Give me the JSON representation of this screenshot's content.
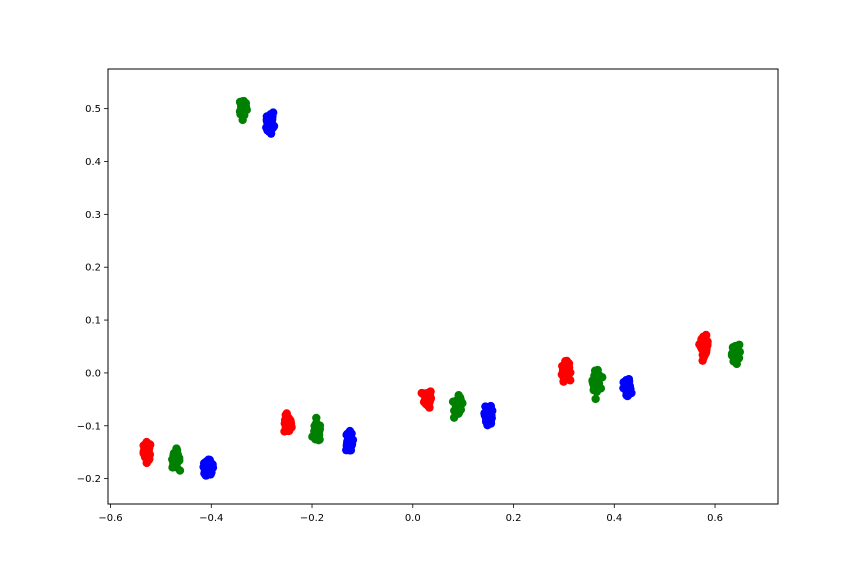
{
  "chart_data": {
    "type": "scatter",
    "title": "",
    "xlabel": "",
    "ylabel": "",
    "xlim": [
      -0.605,
      0.725
    ],
    "ylim": [
      -0.248,
      0.575
    ],
    "grid": false,
    "legend": "none",
    "x_ticks": [
      -0.6,
      -0.4,
      -0.2,
      0.0,
      0.2,
      0.4,
      0.6
    ],
    "x_tick_labels": [
      "−0.6",
      "−0.4",
      "−0.2",
      "0.0",
      "0.2",
      "0.4",
      "0.6"
    ],
    "y_ticks": [
      -0.2,
      -0.1,
      0.0,
      0.1,
      0.2,
      0.3,
      0.4,
      0.5
    ],
    "y_tick_labels": [
      "−0.2",
      "−0.1",
      "0.0",
      "0.1",
      "0.2",
      "0.3",
      "0.4",
      "0.5"
    ],
    "series": [
      {
        "name": "red",
        "color": "#ff0000",
        "clusters": [
          {
            "x": -0.527,
            "y": -0.148
          },
          {
            "x": -0.248,
            "y": -0.098
          },
          {
            "x": 0.03,
            "y": -0.048
          },
          {
            "x": 0.303,
            "y": 0.003
          },
          {
            "x": 0.579,
            "y": 0.052
          }
        ]
      },
      {
        "name": "green",
        "color": "#008000",
        "clusters": [
          {
            "x": -0.47,
            "y": -0.163
          },
          {
            "x": -0.19,
            "y": -0.113
          },
          {
            "x": 0.09,
            "y": -0.063
          },
          {
            "x": 0.365,
            "y": -0.015
          },
          {
            "x": 0.641,
            "y": 0.036
          },
          {
            "x": -0.337,
            "y": 0.503
          }
        ]
      },
      {
        "name": "blue",
        "color": "#0000ff",
        "clusters": [
          {
            "x": -0.405,
            "y": -0.18
          },
          {
            "x": -0.127,
            "y": -0.13
          },
          {
            "x": 0.15,
            "y": -0.08
          },
          {
            "x": 0.426,
            "y": -0.03
          },
          {
            "x": -0.283,
            "y": 0.475
          }
        ]
      }
    ]
  }
}
